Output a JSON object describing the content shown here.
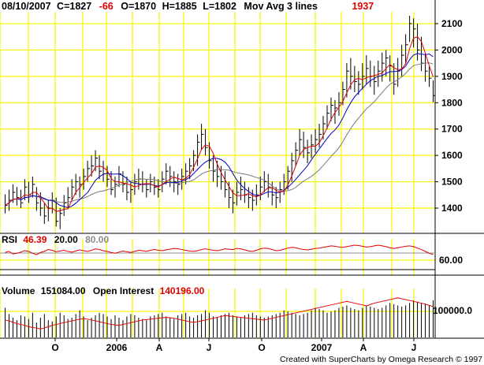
{
  "header": {
    "date": "08/10/2007",
    "close": "C=1827",
    "change": "-66",
    "open": "O=1870",
    "high": "H=1885",
    "low": "L=1802",
    "study": "Mov Avg 3 lines",
    "study_value": "1937"
  },
  "rsi_panel": {
    "label": "RSI",
    "value": "46.39",
    "lower": "20.00",
    "upper": "80.00",
    "tick": "60.00"
  },
  "volume_panel": {
    "label": "Volume",
    "value": "151084.00",
    "oi_label": "Open Interest",
    "oi_value": "140196.00",
    "tick": "100000.0"
  },
  "credit": "Created with SuperCharts by Omega Research © 1997",
  "colors": {
    "grid": "#f5f500",
    "red_line": "#e00000",
    "blue_line": "#0000c8",
    "gray_line": "#7a7a7a",
    "bars": "#000000"
  },
  "chart_data": {
    "type": "ohlc",
    "y_ticks": [
      "2100",
      "2000",
      "1900",
      "1800",
      "1700",
      "1600",
      "1500",
      "1400"
    ],
    "ylim": [
      1300,
      2150
    ],
    "x_ticks": [
      "O",
      "2006",
      "A",
      "J",
      "O",
      "2007",
      "A",
      "J"
    ],
    "price": [
      [
        1452,
        1380,
        1410
      ],
      [
        1470,
        1390,
        1430
      ],
      [
        1490,
        1420,
        1460
      ],
      [
        1480,
        1410,
        1440
      ],
      [
        1470,
        1400,
        1420
      ],
      [
        1510,
        1430,
        1480
      ],
      [
        1500,
        1420,
        1450
      ],
      [
        1520,
        1440,
        1490
      ],
      [
        1480,
        1390,
        1420
      ],
      [
        1460,
        1370,
        1400
      ],
      [
        1420,
        1340,
        1370
      ],
      [
        1430,
        1350,
        1400
      ],
      [
        1460,
        1380,
        1430
      ],
      [
        1440,
        1330,
        1350
      ],
      [
        1400,
        1320,
        1380
      ],
      [
        1450,
        1370,
        1420
      ],
      [
        1480,
        1400,
        1440
      ],
      [
        1510,
        1430,
        1480
      ],
      [
        1530,
        1450,
        1500
      ],
      [
        1520,
        1440,
        1490
      ],
      [
        1550,
        1470,
        1520
      ],
      [
        1580,
        1500,
        1550
      ],
      [
        1600,
        1520,
        1560
      ],
      [
        1620,
        1540,
        1590
      ],
      [
        1600,
        1510,
        1540
      ],
      [
        1580,
        1500,
        1530
      ],
      [
        1560,
        1480,
        1510
      ],
      [
        1540,
        1450,
        1470
      ],
      [
        1520,
        1440,
        1490
      ],
      [
        1560,
        1480,
        1530
      ],
      [
        1540,
        1460,
        1490
      ],
      [
        1520,
        1430,
        1460
      ],
      [
        1500,
        1420,
        1470
      ],
      [
        1530,
        1450,
        1500
      ],
      [
        1550,
        1470,
        1510
      ],
      [
        1540,
        1460,
        1490
      ],
      [
        1510,
        1440,
        1470
      ],
      [
        1530,
        1460,
        1500
      ],
      [
        1520,
        1450,
        1480
      ],
      [
        1510,
        1440,
        1470
      ],
      [
        1540,
        1460,
        1510
      ],
      [
        1570,
        1490,
        1540
      ],
      [
        1560,
        1480,
        1520
      ],
      [
        1540,
        1460,
        1500
      ],
      [
        1530,
        1450,
        1490
      ],
      [
        1550,
        1470,
        1520
      ],
      [
        1570,
        1490,
        1540
      ],
      [
        1590,
        1510,
        1560
      ],
      [
        1620,
        1540,
        1600
      ],
      [
        1680,
        1560,
        1650
      ],
      [
        1720,
        1620,
        1680
      ],
      [
        1700,
        1600,
        1630
      ],
      [
        1650,
        1550,
        1580
      ],
      [
        1600,
        1500,
        1540
      ],
      [
        1580,
        1480,
        1520
      ],
      [
        1560,
        1470,
        1500
      ],
      [
        1540,
        1440,
        1470
      ],
      [
        1500,
        1400,
        1440
      ],
      [
        1470,
        1380,
        1420
      ],
      [
        1500,
        1410,
        1460
      ],
      [
        1520,
        1430,
        1470
      ],
      [
        1500,
        1420,
        1450
      ],
      [
        1480,
        1400,
        1440
      ],
      [
        1470,
        1390,
        1430
      ],
      [
        1490,
        1410,
        1450
      ],
      [
        1520,
        1430,
        1480
      ],
      [
        1540,
        1460,
        1500
      ],
      [
        1530,
        1440,
        1480
      ],
      [
        1500,
        1410,
        1450
      ],
      [
        1480,
        1400,
        1440
      ],
      [
        1500,
        1420,
        1470
      ],
      [
        1530,
        1450,
        1500
      ],
      [
        1560,
        1470,
        1540
      ],
      [
        1610,
        1500,
        1580
      ],
      [
        1650,
        1560,
        1620
      ],
      [
        1700,
        1600,
        1660
      ],
      [
        1690,
        1590,
        1630
      ],
      [
        1660,
        1570,
        1610
      ],
      [
        1680,
        1590,
        1640
      ],
      [
        1700,
        1610,
        1660
      ],
      [
        1720,
        1630,
        1680
      ],
      [
        1750,
        1660,
        1720
      ],
      [
        1790,
        1700,
        1760
      ],
      [
        1820,
        1730,
        1790
      ],
      [
        1810,
        1720,
        1780
      ],
      [
        1840,
        1750,
        1800
      ],
      [
        1880,
        1790,
        1850
      ],
      [
        1950,
        1820,
        1920
      ],
      [
        1970,
        1850,
        1900
      ],
      [
        1940,
        1840,
        1880
      ],
      [
        1920,
        1830,
        1870
      ],
      [
        1950,
        1850,
        1900
      ],
      [
        1980,
        1870,
        1930
      ],
      [
        1960,
        1860,
        1900
      ],
      [
        1940,
        1830,
        1880
      ],
      [
        1960,
        1860,
        1920
      ],
      [
        1990,
        1880,
        1950
      ],
      [
        2000,
        1900,
        1970
      ],
      [
        1980,
        1880,
        1940
      ],
      [
        1950,
        1830,
        1870
      ],
      [
        1970,
        1860,
        1920
      ],
      [
        2020,
        1900,
        1980
      ],
      [
        2060,
        1950,
        2020
      ],
      [
        2130,
        2030,
        2100
      ],
      [
        2120,
        2010,
        2080
      ],
      [
        2100,
        1960,
        2000
      ],
      [
        2050,
        1920,
        1950
      ],
      [
        1990,
        1880,
        1920
      ],
      [
        1937,
        1860,
        1893
      ],
      [
        1885,
        1802,
        1827
      ]
    ],
    "rsi": [
      52,
      55,
      48,
      50,
      53,
      57,
      55,
      50,
      46,
      52,
      55,
      60,
      58,
      54,
      56,
      58,
      55,
      53,
      56,
      59,
      57,
      55,
      58,
      62,
      60,
      57,
      55,
      52,
      50,
      53,
      56,
      54,
      52,
      55,
      58,
      57,
      55,
      58,
      60,
      58,
      57,
      59,
      61,
      63,
      62,
      60,
      58,
      56,
      55,
      57,
      60,
      62,
      60,
      58,
      57,
      59,
      62,
      61,
      60,
      63,
      62,
      59,
      56,
      55,
      58,
      62,
      64,
      63,
      60,
      57,
      58,
      61,
      64,
      66,
      65,
      62,
      60,
      59,
      61,
      63,
      64,
      66,
      68,
      70,
      69,
      67,
      66,
      68,
      70,
      72,
      71,
      69,
      67,
      68,
      70,
      72,
      70,
      68,
      65,
      63,
      65,
      67,
      69,
      70,
      68,
      64,
      60,
      55,
      50,
      46.39
    ],
    "volume": [
      120000,
      95000,
      80000,
      70000,
      90000,
      85000,
      75000,
      100000,
      60000,
      80000,
      95000,
      70000,
      65000,
      85000,
      100000,
      90000,
      75000,
      80000,
      95000,
      110000,
      85000,
      70000,
      80000,
      90000,
      100000,
      95000,
      85000,
      75000,
      90000,
      80000,
      70000,
      85000,
      95000,
      90000,
      80000,
      75000,
      70000,
      85000,
      90000,
      95000,
      100000,
      85000,
      80000,
      75000,
      90000,
      95000,
      100000,
      85000,
      80000,
      90000,
      95000,
      110000,
      100000,
      85000,
      80000,
      90000,
      95000,
      100000,
      90000,
      85000,
      80000,
      90000,
      95000,
      100000,
      90000,
      85000,
      80000,
      85000,
      90000,
      95000,
      100000,
      110000,
      105000,
      100000,
      95000,
      90000,
      95000,
      100000,
      110000,
      120000,
      115000,
      110000,
      100000,
      105000,
      110000,
      120000,
      125000,
      130000,
      120000,
      115000,
      110000,
      120000,
      130000,
      125000,
      120000,
      115000,
      120000,
      130000,
      140000,
      135000,
      130000,
      125000,
      130000,
      140000,
      150000,
      145000,
      140000,
      135000,
      130000,
      151084
    ],
    "open_interest": [
      110000,
      108000,
      105000,
      102000,
      100000,
      98000,
      95000,
      93000,
      92000,
      90000,
      92000,
      95000,
      98000,
      100000,
      102000,
      104000,
      106000,
      108000,
      110000,
      112000,
      113000,
      112000,
      110000,
      108000,
      106000,
      104000,
      102000,
      100000,
      99000,
      98000,
      100000,
      102000,
      104000,
      106000,
      108000,
      110000,
      111000,
      112000,
      113000,
      114000,
      115000,
      116000,
      115000,
      114000,
      112000,
      110000,
      108000,
      106000,
      105000,
      106000,
      108000,
      110000,
      112000,
      114000,
      116000,
      118000,
      120000,
      119000,
      118000,
      117000,
      116000,
      115000,
      114000,
      113000,
      112000,
      111000,
      110000,
      112000,
      114000,
      116000,
      118000,
      120000,
      122000,
      124000,
      126000,
      128000,
      130000,
      132000,
      134000,
      136000,
      138000,
      140000,
      142000,
      144000,
      146000,
      148000,
      150000,
      152000,
      150000,
      148000,
      146000,
      144000,
      142000,
      145000,
      148000,
      150000,
      152000,
      154000,
      156000,
      158000,
      160000,
      158000,
      156000,
      154000,
      152000,
      150000,
      148000,
      146000,
      143000,
      140196
    ]
  }
}
